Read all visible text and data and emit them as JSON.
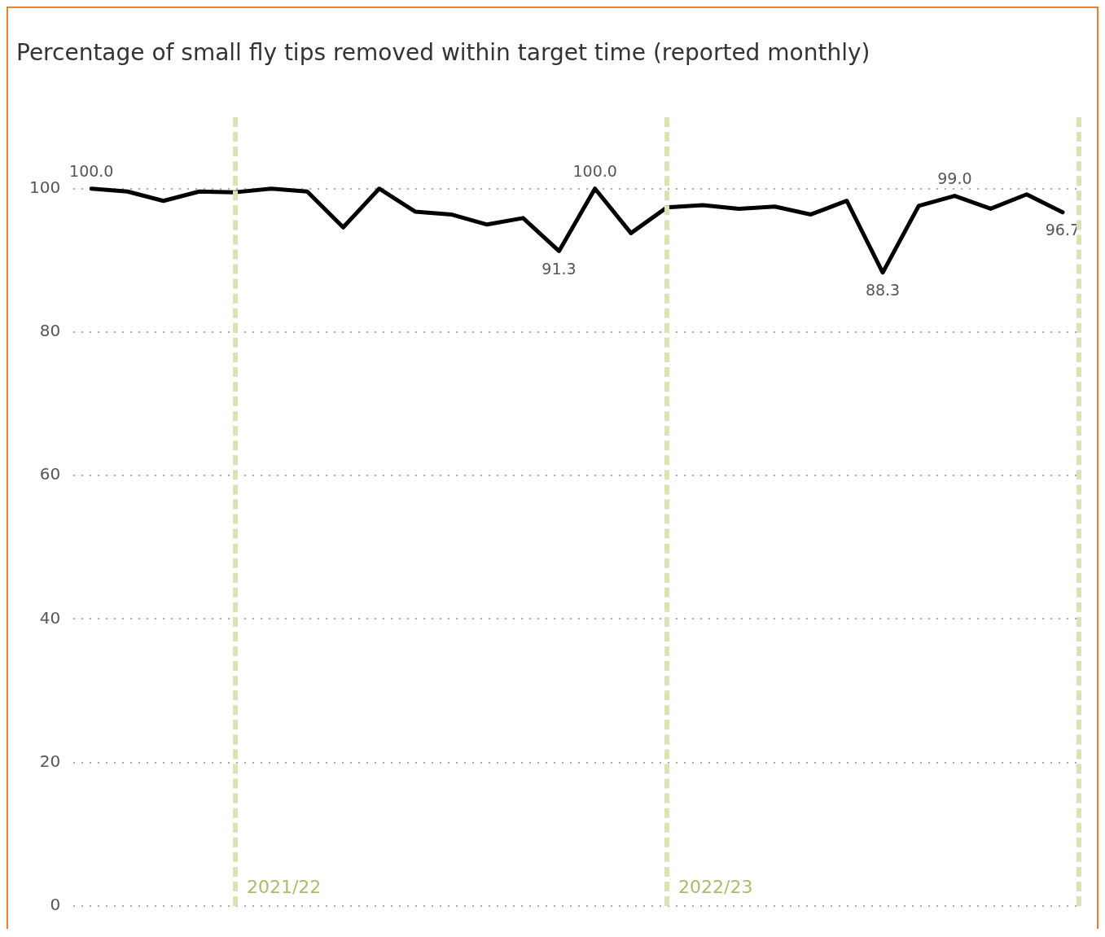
{
  "chart_data": {
    "type": "line",
    "title": "Percentage of small fly tips removed within target time (reported monthly)",
    "categories": [
      null,
      null,
      null,
      null,
      null,
      null,
      null,
      null,
      null,
      null,
      null,
      null,
      null,
      null,
      null,
      null,
      null,
      null,
      null,
      null,
      null,
      null,
      null,
      null,
      null,
      null,
      null,
      null
    ],
    "ylim": [
      0,
      110
    ],
    "yticks": [
      0,
      20,
      40,
      60,
      80,
      100
    ],
    "grid": "y",
    "tick_labels": "y",
    "legend": false,
    "marker": "none",
    "line_style": "solid",
    "series": [
      {
        "color": "#000000",
        "values": [
          100.0,
          99.6,
          98.3,
          99.6,
          99.5,
          100.0,
          99.6,
          94.6,
          100.0,
          96.8,
          96.4,
          95.0,
          95.9,
          91.3,
          100.0,
          93.8,
          97.4,
          97.7,
          97.2,
          97.5,
          96.4,
          98.3,
          88.3,
          97.6,
          99.0,
          97.2,
          99.2,
          96.7
        ],
        "value_labels": [
          "100.0",
          null,
          null,
          null,
          null,
          null,
          null,
          null,
          null,
          null,
          null,
          null,
          null,
          "91.3",
          "100.0",
          null,
          null,
          null,
          null,
          null,
          null,
          null,
          "88.3",
          null,
          "99.0",
          null,
          null,
          "96.7"
        ]
      }
    ],
    "annotations": [
      "2021/22",
      "2022/23"
    ]
  }
}
